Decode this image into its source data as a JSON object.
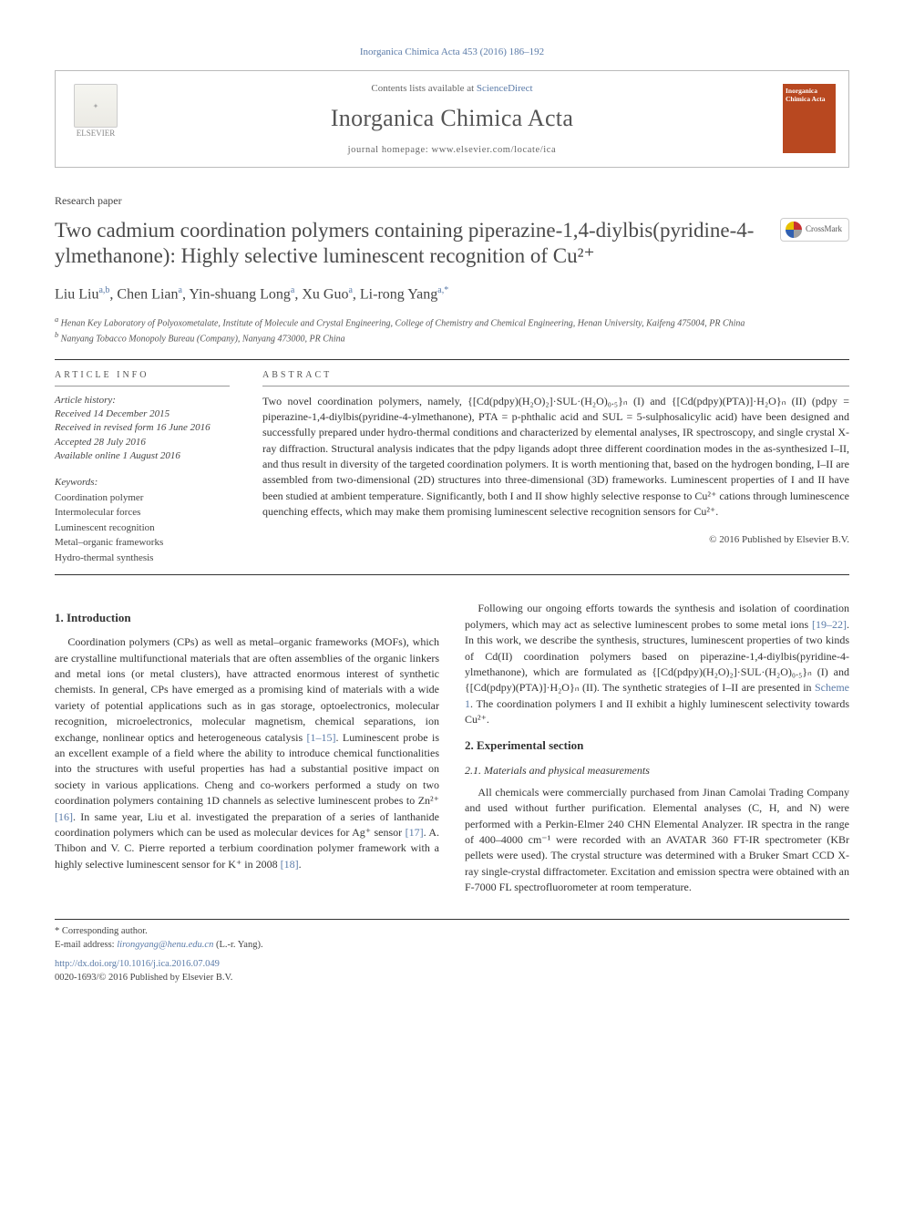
{
  "citation": "Inorganica Chimica Acta 453 (2016) 186–192",
  "header": {
    "contents_prefix": "Contents lists available at ",
    "sciencedirect": "ScienceDirect",
    "journal_name": "Inorganica Chimica Acta",
    "homepage_label": "journal homepage: www.elsevier.com/locate/ica",
    "elsevier_label": "ELSEVIER",
    "cover_title": "Inorganica Chimica Acta"
  },
  "paper_type": "Research paper",
  "title": "Two cadmium coordination polymers containing piperazine-1,4-diylbis(pyridine-4-ylmethanone): Highly selective luminescent recognition of Cu²⁺",
  "crossmark_label": "CrossMark",
  "authors_html": "Liu Liu",
  "authors": {
    "a1_name": "Liu Liu",
    "a1_sup": "a,b",
    "a2_name": "Chen Lian",
    "a2_sup": "a",
    "a3_name": "Yin-shuang Long",
    "a3_sup": "a",
    "a4_name": "Xu Guo",
    "a4_sup": "a",
    "a5_name": "Li-rong Yang",
    "a5_sup": "a,*"
  },
  "affiliations": {
    "a": "Henan Key Laboratory of Polyoxometalate, Institute of Molecule and Crystal Engineering, College of Chemistry and Chemical Engineering, Henan University, Kaifeng 475004, PR China",
    "b": "Nanyang Tobacco Monopoly Bureau (Company), Nanyang 473000, PR China"
  },
  "article_info": {
    "label": "ARTICLE INFO",
    "history_head": "Article history:",
    "received": "Received 14 December 2015",
    "revised": "Received in revised form 16 June 2016",
    "accepted": "Accepted 28 July 2016",
    "online": "Available online 1 August 2016",
    "keywords_head": "Keywords:",
    "keywords": [
      "Coordination polymer",
      "Intermolecular forces",
      "Luminescent recognition",
      "Metal–organic frameworks",
      "Hydro-thermal synthesis"
    ]
  },
  "abstract": {
    "label": "ABSTRACT",
    "text": "Two novel coordination polymers, namely, {[Cd(pdpy)(H₂O)₂]·SUL·(H₂O)₀.₅}ₙ (I) and {[Cd(pdpy)(PTA)]·H₂O}ₙ (II) (pdpy = piperazine-1,4-diylbis(pyridine-4-ylmethanone), PTA = p-phthalic acid and SUL = 5-sulphosalicylic acid) have been designed and successfully prepared under hydro-thermal conditions and characterized by elemental analyses, IR spectroscopy, and single crystal X-ray diffraction. Structural analysis indicates that the pdpy ligands adopt three different coordination modes in the as-synthesized I–II, and thus result in diversity of the targeted coordination polymers. It is worth mentioning that, based on the hydrogen bonding, I–II are assembled from two-dimensional (2D) structures into three-dimensional (3D) frameworks. Luminescent properties of I and II have been studied at ambient temperature. Significantly, both I and II show highly selective response to Cu²⁺ cations through luminescence quenching effects, which may make them promising luminescent selective recognition sensors for Cu²⁺.",
    "copyright": "© 2016 Published by Elsevier B.V."
  },
  "sections": {
    "intro_head": "1. Introduction",
    "intro_p1": "Coordination polymers (CPs) as well as metal–organic frameworks (MOFs), which are crystalline multifunctional materials that are often assemblies of the organic linkers and metal ions (or metal clusters), have attracted enormous interest of synthetic chemists. In general, CPs have emerged as a promising kind of materials with a wide variety of potential applications such as in gas storage, optoelectronics, molecular recognition, microelectronics, molecular magnetism, chemical separations, ion exchange, nonlinear optics and heterogeneous catalysis ",
    "intro_ref1": "[1–15]",
    "intro_p1b": ". Luminescent probe is an excellent example of a field where the ability to introduce chemical functionalities into the structures with useful properties has had a substantial positive impact on society in various applications. Cheng and co-workers performed a study on two coordination polymers containing 1D channels as selective luminescent probes to Zn²⁺ ",
    "intro_ref16": "[16]",
    "intro_p1c": ". In same year, Liu et al. investigated the preparation of a series of lanthanide coordination polymers which can be used as molecular devices for Ag⁺ sensor ",
    "intro_ref17": "[17]",
    "intro_p1d": ". A. Thibon and V. C. Pierre reported a terbium coordination polymer framework with a highly selective luminescent sensor for K⁺ in 2008 ",
    "intro_ref18": "[18]",
    "intro_p1e": ".",
    "intro_p2a": "Following our ongoing efforts towards the synthesis and isolation of coordination polymers, which may act as selective luminescent probes to some metal ions ",
    "intro_ref19": "[19–22]",
    "intro_p2b": ". In this work, we describe the synthesis, structures, luminescent properties of two kinds of Cd(II) coordination polymers based on piperazine-1,4-diylbis(pyridine-4-ylmethanone), which are formulated as {[Cd(pdpy)(H₂O)₂]·SUL·(H₂O)₀.₅}ₙ (I) and {[Cd(pdpy)(PTA)]·H₂O}ₙ (II). The synthetic strategies of I–II are presented in ",
    "intro_scheme": "Scheme 1",
    "intro_p2c": ". The coordination polymers I and II exhibit a highly luminescent selectivity towards Cu²⁺.",
    "exp_head": "2. Experimental section",
    "exp_sub1": "2.1. Materials and physical measurements",
    "exp_p1": "All chemicals were commercially purchased from Jinan Camolai Trading Company and used without further purification. Elemental analyses (C, H, and N) were performed with a Perkin-Elmer 240 CHN Elemental Analyzer. IR spectra in the range of 400–4000 cm⁻¹ were recorded with an AVATAR 360 FT-IR spectrometer (KBr pellets were used). The crystal structure was determined with a Bruker Smart CCD X-ray single-crystal diffractometer. Excitation and emission spectra were obtained with an F-7000 FL spectrofluorometer at room temperature."
  },
  "footer": {
    "corresponding": "* Corresponding author.",
    "email_label": "E-mail address: ",
    "email": "lirongyang@henu.edu.cn",
    "email_suffix": " (L.-r. Yang).",
    "doi": "http://dx.doi.org/10.1016/j.ica.2016.07.049",
    "issn_copy": "0020-1693/© 2016 Published by Elsevier B.V."
  },
  "colors": {
    "link": "#5b7ba8",
    "cover_bg": "#b84820",
    "rule": "#333333"
  }
}
